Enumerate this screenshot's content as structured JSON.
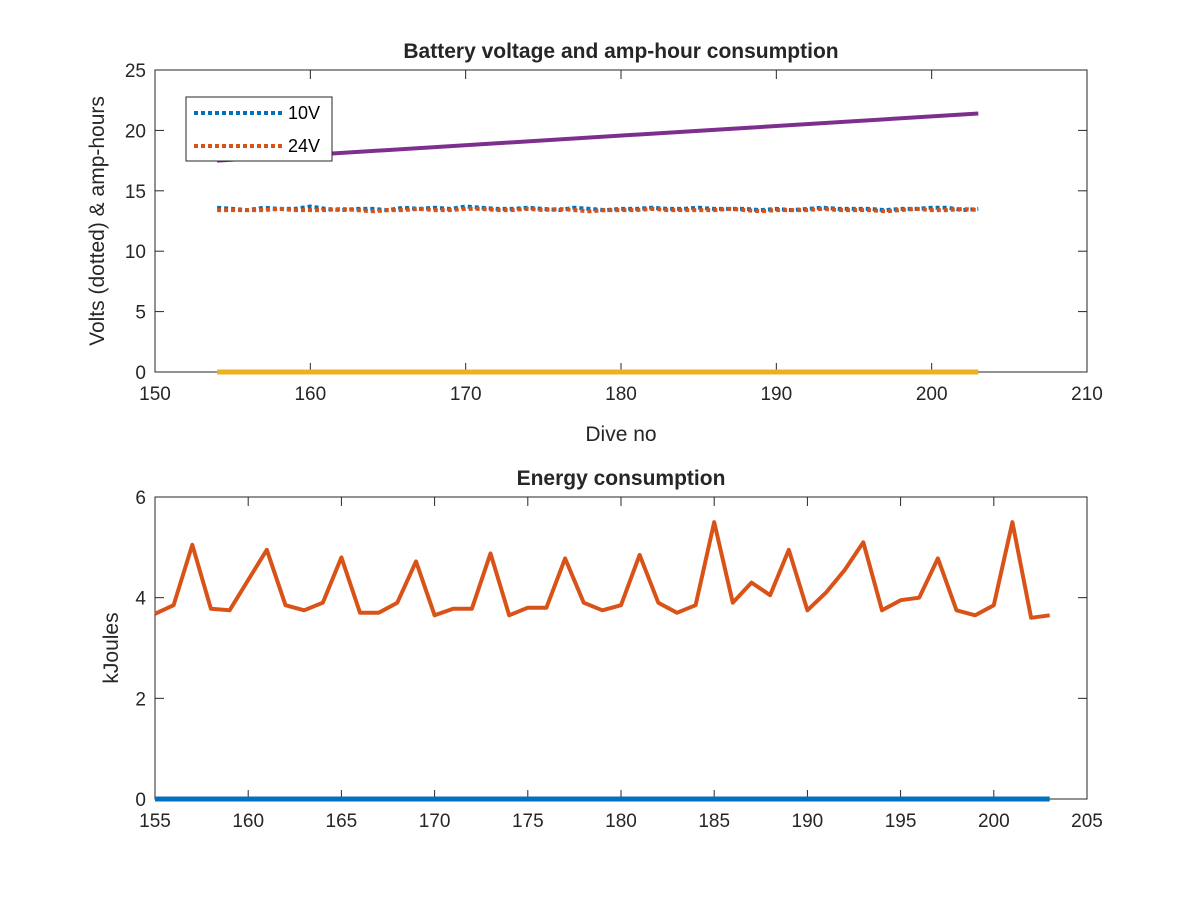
{
  "chart_data": [
    {
      "type": "line",
      "title": "Battery voltage and amp-hour consumption",
      "xlabel": "Dive no",
      "ylabel": "Volts (dotted) & amp-hours",
      "xlim": [
        150,
        210
      ],
      "ylim": [
        0,
        25
      ],
      "xticks": [
        150,
        160,
        170,
        180,
        190,
        200,
        210
      ],
      "yticks": [
        0,
        5,
        10,
        15,
        20,
        25
      ],
      "grid": false,
      "legend_position": "top-left",
      "series": [
        {
          "name": "10V",
          "style": "dotted",
          "color": "#0072BD",
          "x": [
            154,
            155,
            156,
            157,
            158,
            159,
            160,
            161,
            162,
            163,
            164,
            165,
            166,
            167,
            168,
            169,
            170,
            171,
            172,
            173,
            174,
            175,
            176,
            177,
            178,
            179,
            180,
            181,
            182,
            183,
            184,
            185,
            186,
            187,
            188,
            189,
            190,
            191,
            192,
            193,
            194,
            195,
            196,
            197,
            198,
            199,
            200,
            201,
            202,
            203
          ],
          "y": [
            13.6,
            13.5,
            13.4,
            13.6,
            13.5,
            13.5,
            13.7,
            13.5,
            13.4,
            13.5,
            13.5,
            13.4,
            13.6,
            13.5,
            13.6,
            13.5,
            13.7,
            13.6,
            13.5,
            13.5,
            13.6,
            13.5,
            13.4,
            13.6,
            13.5,
            13.4,
            13.5,
            13.5,
            13.6,
            13.5,
            13.5,
            13.6,
            13.5,
            13.5,
            13.5,
            13.4,
            13.5,
            13.4,
            13.5,
            13.6,
            13.5,
            13.5,
            13.5,
            13.4,
            13.5,
            13.5,
            13.6,
            13.6,
            13.4,
            13.5
          ]
        },
        {
          "name": "24V",
          "style": "dotted",
          "color": "#D95319",
          "x": [
            154,
            155,
            156,
            157,
            158,
            159,
            160,
            161,
            162,
            163,
            164,
            165,
            166,
            167,
            168,
            169,
            170,
            171,
            172,
            173,
            174,
            175,
            176,
            177,
            178,
            179,
            180,
            181,
            182,
            183,
            184,
            185,
            186,
            187,
            188,
            189,
            190,
            191,
            192,
            193,
            194,
            195,
            196,
            197,
            198,
            199,
            200,
            201,
            202,
            203
          ],
          "y": [
            13.4,
            13.4,
            13.4,
            13.4,
            13.5,
            13.4,
            13.4,
            13.4,
            13.5,
            13.4,
            13.3,
            13.4,
            13.4,
            13.5,
            13.4,
            13.4,
            13.5,
            13.5,
            13.4,
            13.4,
            13.5,
            13.4,
            13.5,
            13.4,
            13.3,
            13.4,
            13.4,
            13.4,
            13.5,
            13.4,
            13.4,
            13.4,
            13.4,
            13.5,
            13.4,
            13.3,
            13.4,
            13.4,
            13.4,
            13.5,
            13.4,
            13.4,
            13.4,
            13.3,
            13.4,
            13.5,
            13.4,
            13.4,
            13.5,
            13.4
          ]
        },
        {
          "style": "solid",
          "color": "#EDB120",
          "x": [
            154,
            203
          ],
          "y": [
            0,
            0
          ]
        },
        {
          "style": "solid",
          "color": "#7E2F8E",
          "x": [
            154,
            203
          ],
          "y": [
            17.5,
            21.4
          ]
        }
      ]
    },
    {
      "type": "line",
      "title": "Energy consumption",
      "xlabel": "",
      "ylabel": "kJoules",
      "xlim": [
        155,
        205
      ],
      "ylim": [
        0,
        6
      ],
      "xticks": [
        155,
        160,
        165,
        170,
        175,
        180,
        185,
        190,
        195,
        200,
        205
      ],
      "yticks": [
        0,
        2,
        4,
        6
      ],
      "grid": false,
      "series": [
        {
          "style": "solid",
          "color": "#0072BD",
          "x": [
            155,
            203
          ],
          "y": [
            0,
            0
          ]
        },
        {
          "style": "solid",
          "color": "#D95319",
          "x": [
            155,
            156,
            157,
            158,
            159,
            160,
            161,
            162,
            163,
            164,
            165,
            166,
            167,
            168,
            169,
            170,
            171,
            172,
            173,
            174,
            175,
            176,
            177,
            178,
            179,
            180,
            181,
            182,
            183,
            184,
            185,
            186,
            187,
            188,
            189,
            190,
            191,
            192,
            193,
            194,
            195,
            196,
            197,
            198,
            199,
            200,
            201,
            202,
            203
          ],
          "y": [
            3.68,
            3.85,
            5.05,
            3.78,
            3.75,
            4.35,
            4.95,
            3.85,
            3.75,
            3.9,
            4.8,
            3.7,
            3.7,
            3.9,
            4.72,
            3.65,
            3.78,
            3.78,
            4.88,
            3.65,
            3.8,
            3.8,
            4.78,
            3.9,
            3.75,
            3.85,
            4.85,
            3.9,
            3.7,
            3.85,
            5.5,
            3.9,
            4.3,
            4.05,
            4.95,
            3.75,
            4.1,
            4.55,
            5.1,
            3.75,
            3.95,
            4.0,
            4.78,
            3.75,
            3.65,
            3.85,
            5.5,
            3.6,
            3.65
          ]
        }
      ]
    }
  ]
}
